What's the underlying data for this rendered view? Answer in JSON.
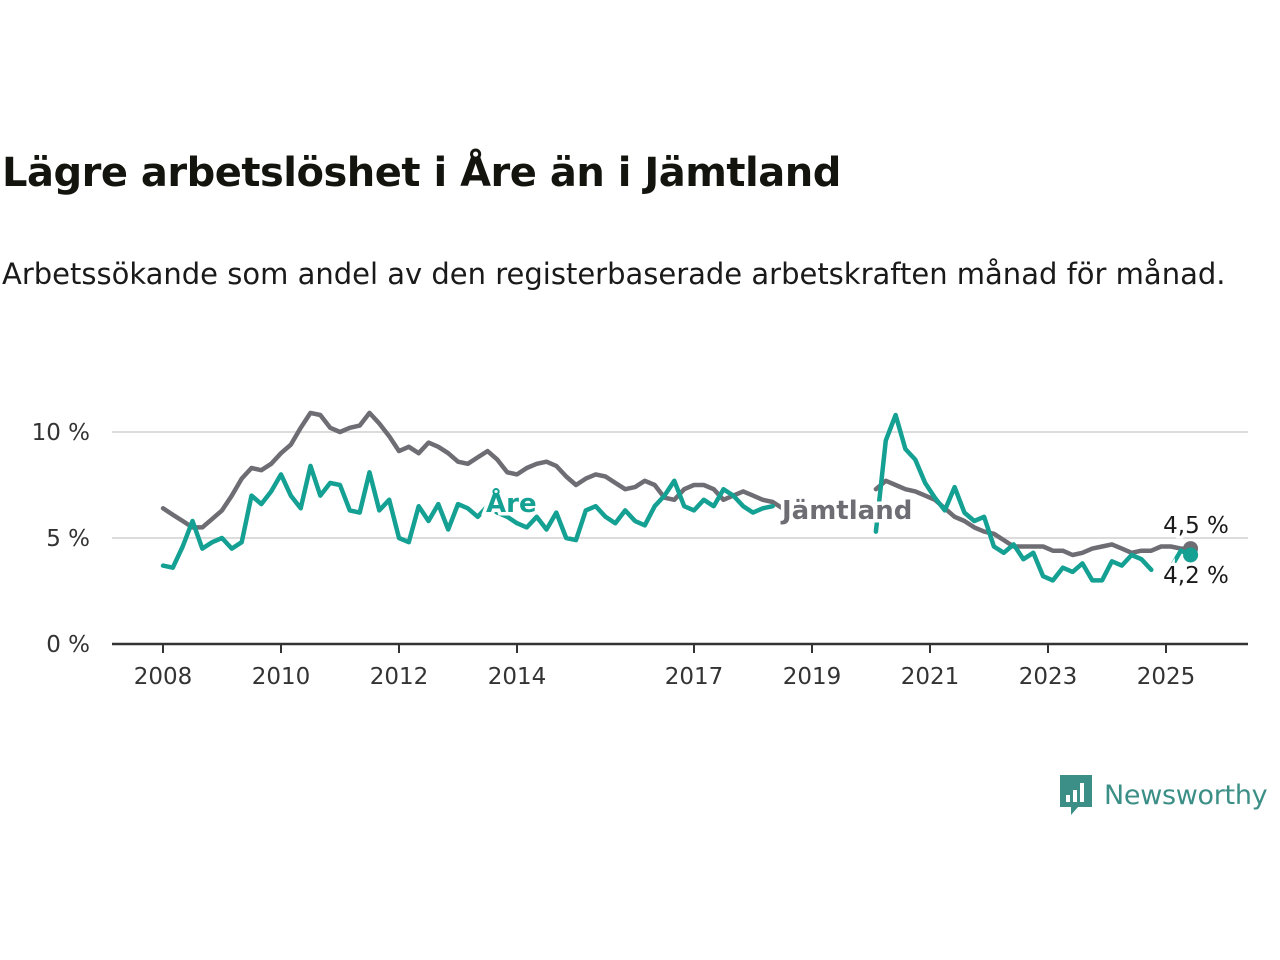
{
  "title": "Lägre arbetslöshet i Åre än i Jämtland",
  "subtitle": "Arbetssökande som andel av den registerbaserade arbetskraften månad för månad.",
  "brand": {
    "name": "Newsworthy",
    "icon": "newsworthy-logo-icon",
    "color": "#3c8f86"
  },
  "chart_data": {
    "type": "line",
    "x_ticks": [
      "2008",
      "2010",
      "2012",
      "2014",
      "2017",
      "2019",
      "2021",
      "2023",
      "2025"
    ],
    "y_ticks": [
      "0 %",
      "5 %",
      "10 %"
    ],
    "ylim": [
      0,
      11
    ],
    "grid": "horizontal",
    "series": [
      {
        "name": "Jämtland",
        "color": "#6f6d74",
        "end_label": "4,5 %",
        "points": [
          [
            "2008-01",
            6.4
          ],
          [
            "2008-03",
            6.1
          ],
          [
            "2008-05",
            5.8
          ],
          [
            "2008-07",
            5.5
          ],
          [
            "2008-09",
            5.5
          ],
          [
            "2008-11",
            5.9
          ],
          [
            "2009-01",
            6.3
          ],
          [
            "2009-03",
            7.0
          ],
          [
            "2009-05",
            7.8
          ],
          [
            "2009-07",
            8.3
          ],
          [
            "2009-09",
            8.2
          ],
          [
            "2009-11",
            8.5
          ],
          [
            "2010-01",
            9.0
          ],
          [
            "2010-03",
            9.4
          ],
          [
            "2010-05",
            10.2
          ],
          [
            "2010-07",
            10.9
          ],
          [
            "2010-09",
            10.8
          ],
          [
            "2010-11",
            10.2
          ],
          [
            "2011-01",
            10.0
          ],
          [
            "2011-03",
            10.2
          ],
          [
            "2011-05",
            10.3
          ],
          [
            "2011-07",
            10.9
          ],
          [
            "2011-09",
            10.4
          ],
          [
            "2011-11",
            9.8
          ],
          [
            "2012-01",
            9.1
          ],
          [
            "2012-03",
            9.3
          ],
          [
            "2012-05",
            9.0
          ],
          [
            "2012-07",
            9.5
          ],
          [
            "2012-09",
            9.3
          ],
          [
            "2012-11",
            9.0
          ],
          [
            "2013-01",
            8.6
          ],
          [
            "2013-03",
            8.5
          ],
          [
            "2013-05",
            8.8
          ],
          [
            "2013-07",
            9.1
          ],
          [
            "2013-09",
            8.7
          ],
          [
            "2013-11",
            8.1
          ],
          [
            "2014-01",
            8.0
          ],
          [
            "2014-03",
            8.3
          ],
          [
            "2014-05",
            8.5
          ],
          [
            "2014-07",
            8.6
          ],
          [
            "2014-09",
            8.4
          ],
          [
            "2014-11",
            7.9
          ],
          [
            "2015-01",
            7.5
          ],
          [
            "2015-03",
            7.8
          ],
          [
            "2015-05",
            8.0
          ],
          [
            "2015-07",
            7.9
          ],
          [
            "2015-09",
            7.6
          ],
          [
            "2015-11",
            7.3
          ],
          [
            "2016-01",
            7.4
          ],
          [
            "2016-03",
            7.7
          ],
          [
            "2016-05",
            7.5
          ],
          [
            "2016-07",
            6.9
          ],
          [
            "2016-09",
            6.8
          ],
          [
            "2016-11",
            7.3
          ],
          [
            "2017-01",
            7.5
          ],
          [
            "2017-03",
            7.5
          ],
          [
            "2017-05",
            7.3
          ],
          [
            "2017-07",
            6.8
          ],
          [
            "2017-09",
            7.0
          ],
          [
            "2017-11",
            7.2
          ],
          [
            "2018-01",
            7.0
          ],
          [
            "2018-03",
            6.8
          ],
          [
            "2018-05",
            6.7
          ],
          [
            "2018-07",
            6.4
          ],
          null,
          [
            "2020-02",
            7.3
          ],
          [
            "2020-04",
            7.7
          ],
          [
            "2020-06",
            7.5
          ],
          [
            "2020-08",
            7.3
          ],
          [
            "2020-10",
            7.2
          ],
          [
            "2020-12",
            7.0
          ],
          [
            "2021-02",
            6.8
          ],
          [
            "2021-04",
            6.4
          ],
          [
            "2021-06",
            6.0
          ],
          [
            "2021-08",
            5.8
          ],
          [
            "2021-10",
            5.5
          ],
          [
            "2021-12",
            5.3
          ],
          [
            "2022-02",
            5.2
          ],
          [
            "2022-04",
            4.9
          ],
          [
            "2022-06",
            4.6
          ],
          [
            "2022-08",
            4.6
          ],
          [
            "2022-10",
            4.6
          ],
          [
            "2022-12",
            4.6
          ],
          [
            "2023-02",
            4.4
          ],
          [
            "2023-04",
            4.4
          ],
          [
            "2023-06",
            4.2
          ],
          [
            "2023-08",
            4.3
          ],
          [
            "2023-10",
            4.5
          ],
          [
            "2023-12",
            4.6
          ],
          [
            "2024-02",
            4.7
          ],
          [
            "2024-04",
            4.5
          ],
          [
            "2024-06",
            4.3
          ],
          [
            "2024-08",
            4.4
          ],
          [
            "2024-10",
            4.4
          ],
          [
            "2024-12",
            4.6
          ],
          [
            "2025-02",
            4.6
          ],
          [
            "2025-04",
            4.5
          ],
          [
            "2025-06",
            4.5
          ]
        ]
      },
      {
        "name": "Åre",
        "color": "#14a092",
        "end_label": "4,2 %",
        "points": [
          [
            "2008-01",
            3.7
          ],
          [
            "2008-03",
            3.6
          ],
          [
            "2008-05",
            4.6
          ],
          [
            "2008-07",
            5.8
          ],
          [
            "2008-09",
            4.5
          ],
          [
            "2008-11",
            4.8
          ],
          [
            "2009-01",
            5.0
          ],
          [
            "2009-03",
            4.5
          ],
          [
            "2009-05",
            4.8
          ],
          [
            "2009-07",
            7.0
          ],
          [
            "2009-09",
            6.6
          ],
          [
            "2009-11",
            7.2
          ],
          [
            "2010-01",
            8.0
          ],
          [
            "2010-03",
            7.0
          ],
          [
            "2010-05",
            6.4
          ],
          [
            "2010-07",
            8.4
          ],
          [
            "2010-09",
            7.0
          ],
          [
            "2010-11",
            7.6
          ],
          [
            "2011-01",
            7.5
          ],
          [
            "2011-03",
            6.3
          ],
          [
            "2011-05",
            6.2
          ],
          [
            "2011-07",
            8.1
          ],
          [
            "2011-09",
            6.3
          ],
          [
            "2011-11",
            6.8
          ],
          [
            "2012-01",
            5.0
          ],
          [
            "2012-03",
            4.8
          ],
          [
            "2012-05",
            6.5
          ],
          [
            "2012-07",
            5.8
          ],
          [
            "2012-09",
            6.6
          ],
          [
            "2012-11",
            5.4
          ],
          [
            "2013-01",
            6.6
          ],
          [
            "2013-03",
            6.4
          ],
          [
            "2013-05",
            6.0
          ],
          [
            "2013-07",
            6.5
          ],
          [
            "2013-09",
            6.2
          ],
          [
            "2013-11",
            6.0
          ],
          [
            "2014-01",
            5.7
          ],
          [
            "2014-03",
            5.5
          ],
          [
            "2014-05",
            6.0
          ],
          [
            "2014-07",
            5.4
          ],
          [
            "2014-09",
            6.2
          ],
          [
            "2014-11",
            5.0
          ],
          [
            "2015-01",
            4.9
          ],
          [
            "2015-03",
            6.3
          ],
          [
            "2015-05",
            6.5
          ],
          [
            "2015-07",
            6.0
          ],
          [
            "2015-09",
            5.7
          ],
          [
            "2015-11",
            6.3
          ],
          [
            "2016-01",
            5.8
          ],
          [
            "2016-03",
            5.6
          ],
          [
            "2016-05",
            6.5
          ],
          [
            "2016-07",
            7.0
          ],
          [
            "2016-09",
            7.7
          ],
          [
            "2016-11",
            6.5
          ],
          [
            "2017-01",
            6.3
          ],
          [
            "2017-03",
            6.8
          ],
          [
            "2017-05",
            6.5
          ],
          [
            "2017-07",
            7.3
          ],
          [
            "2017-09",
            7.0
          ],
          [
            "2017-11",
            6.5
          ],
          [
            "2018-01",
            6.2
          ],
          [
            "2018-03",
            6.4
          ],
          [
            "2018-05",
            6.5
          ],
          null,
          [
            "2020-02",
            5.3
          ],
          [
            "2020-04",
            9.6
          ],
          [
            "2020-06",
            10.8
          ],
          [
            "2020-08",
            9.2
          ],
          [
            "2020-10",
            8.7
          ],
          [
            "2020-12",
            7.6
          ],
          [
            "2021-02",
            6.9
          ],
          [
            "2021-04",
            6.3
          ],
          [
            "2021-06",
            7.4
          ],
          [
            "2021-08",
            6.2
          ],
          [
            "2021-10",
            5.8
          ],
          [
            "2021-12",
            6.0
          ],
          [
            "2022-02",
            4.6
          ],
          [
            "2022-04",
            4.3
          ],
          [
            "2022-06",
            4.7
          ],
          [
            "2022-08",
            4.0
          ],
          [
            "2022-10",
            4.3
          ],
          [
            "2022-12",
            3.2
          ],
          [
            "2023-02",
            3.0
          ],
          [
            "2023-04",
            3.6
          ],
          [
            "2023-06",
            3.4
          ],
          [
            "2023-08",
            3.8
          ],
          [
            "2023-10",
            3.0
          ],
          [
            "2023-12",
            3.0
          ],
          [
            "2024-02",
            3.9
          ],
          [
            "2024-04",
            3.7
          ],
          [
            "2024-06",
            4.2
          ],
          [
            "2024-08",
            4.0
          ],
          [
            "2024-10",
            3.5
          ],
          null,
          [
            "2025-02",
            3.6
          ],
          [
            "2025-04",
            4.4
          ],
          [
            "2025-06",
            4.2
          ]
        ]
      }
    ]
  }
}
